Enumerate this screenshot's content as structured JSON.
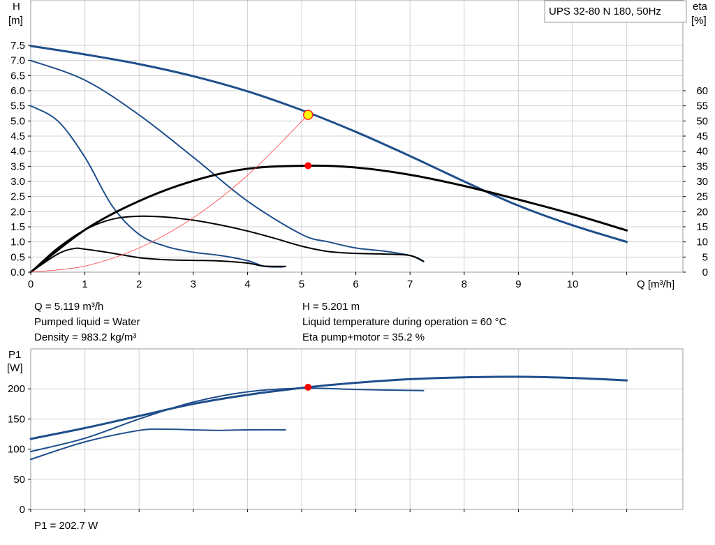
{
  "title_box": "UPS 32-80 N 180, 50Hz",
  "top_chart": {
    "y_label_line1": "H",
    "y_label_line2": "[m]",
    "y2_label_line1": "eta",
    "y2_label_line2": "[%]",
    "x_label": "Q [m³/h]",
    "x_ticks": [
      "0",
      "1",
      "2",
      "3",
      "4",
      "5",
      "6",
      "7",
      "8",
      "9",
      "10"
    ],
    "y_ticks": [
      "0.0",
      "0.5",
      "1.0",
      "1.5",
      "2.0",
      "2.5",
      "3.0",
      "3.5",
      "4.0",
      "4.5",
      "5.0",
      "5.5",
      "6.0",
      "6.5",
      "7.0",
      "7.5"
    ],
    "y2_ticks": [
      "0",
      "5",
      "10",
      "15",
      "20",
      "25",
      "30",
      "35",
      "40",
      "45",
      "50",
      "55",
      "60"
    ]
  },
  "info_left": [
    "Q = 5.119 m³/h",
    "Pumped liquid = Water",
    "Density = 983.2 kg/m³"
  ],
  "info_right": [
    "H = 5.201 m",
    "Liquid temperature during operation = 60 °C",
    "Eta pump+motor = 35.2 %"
  ],
  "bottom_chart": {
    "y_label_line1": "P1",
    "y_label_line2": "[W]",
    "y_ticks": [
      "0",
      "50",
      "100",
      "150",
      "200"
    ],
    "footer": "P1 = 202.7 W"
  },
  "colors": {
    "head_curve": "#1f4e8c",
    "eta_curve": "#000000",
    "marker": "#ff0000",
    "system_curve": "#ff6060",
    "grid": "#d0d0d0"
  },
  "chart_data": [
    {
      "type": "line",
      "title": "UPS 32-80 N 180, 50Hz",
      "xlabel": "Q [m³/h]",
      "ylabel": "H [m]",
      "y2label": "eta [%]",
      "xlim": [
        0,
        12
      ],
      "ylim": [
        0,
        7.5
      ],
      "y2lim": [
        0,
        75
      ],
      "grid": true,
      "series": [
        {
          "x": [
            0,
            1,
            2,
            3,
            4,
            5,
            6,
            7,
            8,
            9,
            10,
            11
          ],
          "y": [
            7.48,
            7.2,
            6.88,
            6.48,
            5.98,
            5.36,
            4.64,
            3.84,
            3.0,
            2.2,
            1.55,
            1.0
          ]
        },
        {
          "x": [
            0,
            1,
            2,
            3,
            4,
            5,
            5.5,
            6,
            6.5,
            7,
            7.25
          ],
          "y": [
            7.0,
            6.35,
            5.2,
            3.8,
            2.35,
            1.25,
            1.0,
            0.8,
            0.7,
            0.55,
            0.35
          ]
        },
        {
          "x": [
            0,
            0.5,
            1,
            1.5,
            2,
            2.5,
            3,
            3.5,
            4,
            4.3,
            4.6,
            4.7
          ],
          "y": [
            5.5,
            5.0,
            3.8,
            2.2,
            1.25,
            0.85,
            0.66,
            0.55,
            0.38,
            0.2,
            0.17,
            0.19
          ]
        },
        {
          "axis": "y2",
          "x": [
            0,
            1,
            2,
            3,
            4,
            5.12,
            6,
            7,
            8,
            9,
            10,
            11
          ],
          "y": [
            0,
            14,
            23.5,
            30.2,
            34.2,
            35.2,
            34.6,
            32.2,
            28.5,
            24.0,
            19.2,
            13.8
          ]
        },
        {
          "axis": "y2",
          "x": [
            0,
            0.5,
            1,
            1.5,
            2,
            2.5,
            3,
            3.5,
            4,
            4.5,
            5,
            5.5,
            6,
            6.5,
            7,
            7.25
          ],
          "y": [
            0,
            8,
            14,
            17.5,
            18.5,
            18.2,
            17.2,
            15.6,
            13.6,
            11.2,
            8.6,
            6.8,
            6.2,
            6.0,
            5.5,
            3.6
          ]
        },
        {
          "axis": "y2",
          "x": [
            0,
            0.5,
            0.8,
            1,
            1.5,
            2,
            2.5,
            3,
            3.5,
            4,
            4.3,
            4.7
          ],
          "y": [
            0,
            6,
            7.8,
            7.6,
            6.3,
            4.8,
            4.1,
            3.9,
            3.7,
            3.0,
            2.0,
            1.9
          ]
        },
        {
          "x": [
            0,
            1,
            2,
            3,
            4,
            5.119
          ],
          "y": [
            0,
            0.2,
            0.8,
            1.8,
            3.2,
            5.201
          ]
        }
      ],
      "markers": [
        {
          "x": 5.119,
          "y": 5.201
        },
        {
          "x": 5.119,
          "y2": 35.2
        }
      ]
    },
    {
      "type": "line",
      "ylabel": "P1 [W]",
      "xlim": [
        0,
        12
      ],
      "ylim": [
        0,
        250
      ],
      "grid": true,
      "series": [
        {
          "x": [
            0,
            1,
            2,
            3,
            4,
            5.119,
            6,
            7,
            8,
            9,
            10,
            11
          ],
          "y": [
            117,
            135,
            155,
            175,
            190,
            202.7,
            210,
            216,
            219,
            220,
            218,
            214
          ]
        },
        {
          "x": [
            0,
            1,
            2,
            3,
            4,
            5,
            6,
            7.25
          ],
          "y": [
            96,
            118,
            150,
            178,
            195,
            201,
            199,
            197
          ]
        },
        {
          "x": [
            0,
            1,
            2,
            2.5,
            3,
            3.5,
            4,
            4.7
          ],
          "y": [
            83,
            112,
            131,
            133,
            132,
            131,
            132,
            132
          ]
        }
      ],
      "markers": [
        {
          "x": 5.119,
          "y": 202.7
        }
      ]
    }
  ]
}
